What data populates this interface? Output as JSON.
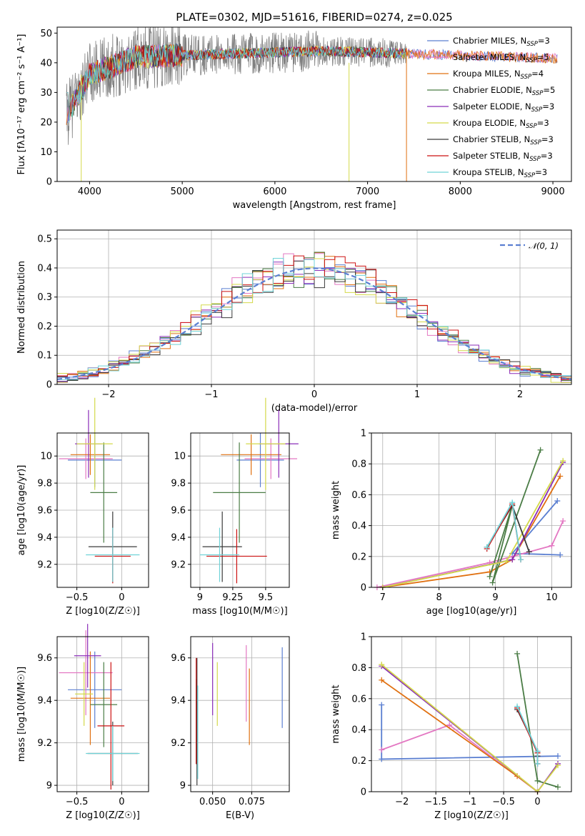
{
  "figure_title": "PLATE=0302, MJD=51616, FIBERID=0274, z=0.025",
  "colors": [
    "#5b7fd1",
    "#e377c2",
    "#e07010",
    "#4a7c45",
    "#8a2cb8",
    "#d4d94a",
    "#3a3a3a",
    "#cc1111",
    "#6fd3d8"
  ],
  "chart_data": [
    {
      "id": "spectrum",
      "type": "line",
      "xlabel": "wavelength [Angstrom, rest frame]",
      "ylabel": "Flux [fλ10⁻¹⁷ erg cm⁻² s⁻¹ A⁻¹]",
      "xlim": [
        3650,
        9200
      ],
      "ylim": [
        0,
        52
      ],
      "xticks": [
        4000,
        5000,
        6000,
        7000,
        8000,
        9000
      ],
      "yticks": [
        0,
        10,
        20,
        30,
        40,
        50
      ],
      "data_color": "#808080",
      "data_range": [
        3750,
        7420
      ],
      "legend": [
        "Chabrier MILES, N_SSP=3",
        "Salpeter MILES, N_SSP=5",
        "Kroupa MILES, N_SSP=4",
        "Chabrier ELODIE, N_SSP=5",
        "Salpeter ELODIE, N_SSP=3",
        "Kroupa ELODIE, N_SSP=3",
        "Chabrier STELIB, N_SSP=3",
        "Salpeter STELIB, N_SSP=3",
        "Kroupa STELIB, N_SSP=3"
      ],
      "legend_loc": "upper right",
      "grid": false
    },
    {
      "id": "residuals",
      "type": "histogram",
      "xlabel": "(data-model)/error",
      "ylabel": "Normed distribution",
      "xlim": [
        -2.5,
        2.5
      ],
      "ylim": [
        0,
        0.53
      ],
      "xticks": [
        -2,
        -1,
        0,
        1,
        2
      ],
      "yticks": [
        0.0,
        0.1,
        0.2,
        0.3,
        0.4,
        0.5
      ],
      "gaussian_label": "𝒩(0, 1)",
      "gaussian_color": "#5b7fd1",
      "grid": true
    },
    {
      "id": "z-age",
      "type": "errorbar",
      "xlabel": "Z [log10(Z/Z☉)]",
      "ylabel": "age  [log10(age/yr)]",
      "xlim": [
        -0.72,
        0.3
      ],
      "ylim": [
        9.03,
        10.17
      ],
      "xticks": [
        -0.5,
        0.0
      ],
      "yticks": [
        9.2,
        9.4,
        9.6,
        9.8,
        10.0
      ],
      "points": [
        {
          "x": -0.3,
          "xerr": 0.3,
          "y": 9.97,
          "yerr": 0.2
        },
        {
          "x": -0.4,
          "xerr": 0.3,
          "y": 9.98,
          "yerr": 0.15
        },
        {
          "x": -0.35,
          "xerr": 0.22,
          "y": 10.01,
          "yerr": 0.15
        },
        {
          "x": -0.2,
          "xerr": 0.15,
          "y": 9.73,
          "yerr": 0.37
        },
        {
          "x": -0.37,
          "xerr": 0.15,
          "y": 10.09,
          "yerr": 0.25
        },
        {
          "x": -0.3,
          "xerr": 0.2,
          "y": 10.09,
          "yerr": 0.34
        },
        {
          "x": -0.1,
          "xerr": 0.27,
          "y": 9.33,
          "yerr": 0.26
        },
        {
          "x": -0.1,
          "xerr": 0.2,
          "y": 9.26,
          "yerr": 0.2
        },
        {
          "x": -0.1,
          "xerr": 0.3,
          "y": 9.27,
          "yerr": 0.2
        }
      ],
      "grid": true
    },
    {
      "id": "mass-age",
      "type": "errorbar",
      "xlabel": "mass [log10(M/M☉)]",
      "ylabel": "",
      "xlim": [
        8.93,
        9.68
      ],
      "ylim": [
        9.03,
        10.17
      ],
      "xticks": [
        9.0,
        9.25,
        9.5
      ],
      "yticks": [
        9.2,
        9.4,
        9.6,
        9.8,
        10.0
      ],
      "points": [
        {
          "x": 9.46,
          "xerr": 0.18,
          "y": 9.97,
          "yerr": 0.2
        },
        {
          "x": 9.54,
          "xerr": 0.2,
          "y": 9.98,
          "yerr": 0.15
        },
        {
          "x": 9.39,
          "xerr": 0.23,
          "y": 10.01,
          "yerr": 0.15
        },
        {
          "x": 9.3,
          "xerr": 0.2,
          "y": 9.73,
          "yerr": 0.37
        },
        {
          "x": 9.6,
          "xerr": 0.15,
          "y": 10.09,
          "yerr": 0.25
        },
        {
          "x": 9.5,
          "xerr": 0.15,
          "y": 10.09,
          "yerr": 0.34
        },
        {
          "x": 9.17,
          "xerr": 0.15,
          "y": 9.33,
          "yerr": 0.26
        },
        {
          "x": 9.28,
          "xerr": 0.23,
          "y": 9.26,
          "yerr": 0.2
        },
        {
          "x": 9.15,
          "xerr": 0.15,
          "y": 9.27,
          "yerr": 0.2
        }
      ],
      "grid": true
    },
    {
      "id": "age-weight",
      "type": "line",
      "xlabel": "age  [log10(age/yr)]",
      "ylabel": "mass weight",
      "xlim": [
        6.8,
        10.35
      ],
      "ylim": [
        0,
        1.0
      ],
      "xticks": [
        7,
        8,
        9,
        10
      ],
      "yticks": [
        0.0,
        0.2,
        0.4,
        0.6,
        0.8,
        1.0
      ],
      "series": [
        {
          "x": [
            10.1,
            9.3,
            10.15
          ],
          "y": [
            0.56,
            0.22,
            0.21
          ]
        },
        {
          "x": [
            6.9,
            8.9,
            10.0,
            10.2
          ],
          "y": [
            0.0,
            0.16,
            0.27,
            0.43
          ]
        },
        {
          "x": [
            7.0,
            8.9,
            9.3,
            10.15
          ],
          "y": [
            0.0,
            0.1,
            0.18,
            0.72
          ]
        },
        {
          "x": [
            8.9,
            9.3,
            8.95,
            9.8
          ],
          "y": [
            0.07,
            0.53,
            0.03,
            0.89
          ]
        },
        {
          "x": [
            7.0,
            9.3,
            10.2
          ],
          "y": [
            0.0,
            0.18,
            0.81
          ]
        },
        {
          "x": [
            7.0,
            9.2,
            10.2
          ],
          "y": [
            0.0,
            0.17,
            0.82
          ]
        },
        {
          "x": [
            8.85,
            9.3,
            9.6
          ],
          "y": [
            0.26,
            0.53,
            0.23
          ]
        },
        {
          "x": [
            8.85,
            9.3,
            9.45
          ],
          "y": [
            0.25,
            0.54,
            0.18
          ]
        },
        {
          "x": [
            8.85,
            9.3,
            9.45
          ],
          "y": [
            0.26,
            0.55,
            0.18
          ]
        }
      ],
      "grid": true
    },
    {
      "id": "z-mass",
      "type": "errorbar",
      "xlabel": "Z [log10(Z/Z☉)]",
      "ylabel": "mass [log10(M/M☉)]",
      "xlim": [
        -0.72,
        0.3
      ],
      "ylim": [
        8.97,
        9.7
      ],
      "xticks": [
        -0.5,
        0.0
      ],
      "yticks": [
        9.0,
        9.2,
        9.4,
        9.6
      ],
      "points": [
        {
          "x": -0.3,
          "xerr": 0.3,
          "y": 9.45,
          "yerr": 0.18
        },
        {
          "x": -0.4,
          "xerr": 0.3,
          "y": 9.53,
          "yerr": 0.2
        },
        {
          "x": -0.35,
          "xerr": 0.22,
          "y": 9.41,
          "yerr": 0.22
        },
        {
          "x": -0.2,
          "xerr": 0.15,
          "y": 9.38,
          "yerr": 0.2
        },
        {
          "x": -0.38,
          "xerr": 0.15,
          "y": 9.61,
          "yerr": 0.15
        },
        {
          "x": -0.42,
          "xerr": 0.1,
          "y": 9.43,
          "yerr": 0.15
        },
        {
          "x": -0.1,
          "xerr": 0.28,
          "y": 9.15,
          "yerr": 0.15
        },
        {
          "x": -0.12,
          "xerr": 0.15,
          "y": 9.28,
          "yerr": 0.3
        },
        {
          "x": -0.1,
          "xerr": 0.3,
          "y": 9.15,
          "yerr": 0.13
        }
      ],
      "grid": true
    },
    {
      "id": "ebv-mass",
      "type": "errorbar",
      "xlabel": "E(B-V)",
      "ylabel": "",
      "xlim": [
        0.036,
        0.099
      ],
      "ylim": [
        8.97,
        9.7
      ],
      "xticks": [
        0.05,
        0.075
      ],
      "xticklabels": [
        "0.050",
        "0.075"
      ],
      "yticks": [
        9.0,
        9.2,
        9.4,
        9.6
      ],
      "points": [
        {
          "x": 0.0945,
          "y": 9.46,
          "yerr": 0.19
        },
        {
          "x": 0.0715,
          "y": 9.48,
          "yerr": 0.18
        },
        {
          "x": 0.0735,
          "y": 9.37,
          "yerr": 0.18
        },
        {
          "x": 0.0395,
          "y": 9.3,
          "yerr": 0.2
        },
        {
          "x": 0.05,
          "y": 9.5,
          "yerr": 0.17
        },
        {
          "x": 0.053,
          "y": 9.43,
          "yerr": 0.15
        },
        {
          "x": 0.04,
          "y": 9.3,
          "yerr": 0.3
        },
        {
          "x": 0.0395,
          "y": 9.35,
          "yerr": 0.25
        },
        {
          "x": 0.0405,
          "y": 9.25,
          "yerr": 0.22
        }
      ],
      "grid": true
    },
    {
      "id": "z-weight",
      "type": "line",
      "xlabel": "Z [log10(Z/Z☉)]",
      "ylabel": "mass weight",
      "xlim": [
        -2.45,
        0.5
      ],
      "ylim": [
        0,
        1.0
      ],
      "xticks": [
        -2.0,
        -1.5,
        -1.0,
        -0.5,
        0.0
      ],
      "yticks": [
        0.0,
        0.2,
        0.4,
        0.6,
        0.8,
        1.0
      ],
      "series": [
        {
          "x": [
            -2.3,
            -2.3,
            0.3
          ],
          "y": [
            0.56,
            0.21,
            0.23
          ]
        },
        {
          "x": [
            -2.3,
            -1.3,
            0.0
          ],
          "y": [
            0.27,
            0.43,
            0.0
          ]
        },
        {
          "x": [
            -2.3,
            -0.3,
            0.0
          ],
          "y": [
            0.72,
            0.1,
            0.0
          ]
        },
        {
          "x": [
            -0.3,
            0.0,
            0.3
          ],
          "y": [
            0.89,
            0.07,
            0.03
          ]
        },
        {
          "x": [
            -2.3,
            0.0,
            0.3
          ],
          "y": [
            0.81,
            0.0,
            0.18
          ]
        },
        {
          "x": [
            -2.3,
            0.0,
            0.3
          ],
          "y": [
            0.82,
            0.0,
            0.17
          ]
        },
        {
          "x": [
            -0.3,
            0.0,
            0.0
          ],
          "y": [
            0.53,
            0.26,
            0.23
          ]
        },
        {
          "x": [
            -0.3,
            0.0,
            0.0
          ],
          "y": [
            0.54,
            0.25,
            0.18
          ]
        },
        {
          "x": [
            -0.3,
            0.0,
            0.0
          ],
          "y": [
            0.55,
            0.26,
            0.18
          ]
        }
      ],
      "grid": true
    }
  ]
}
